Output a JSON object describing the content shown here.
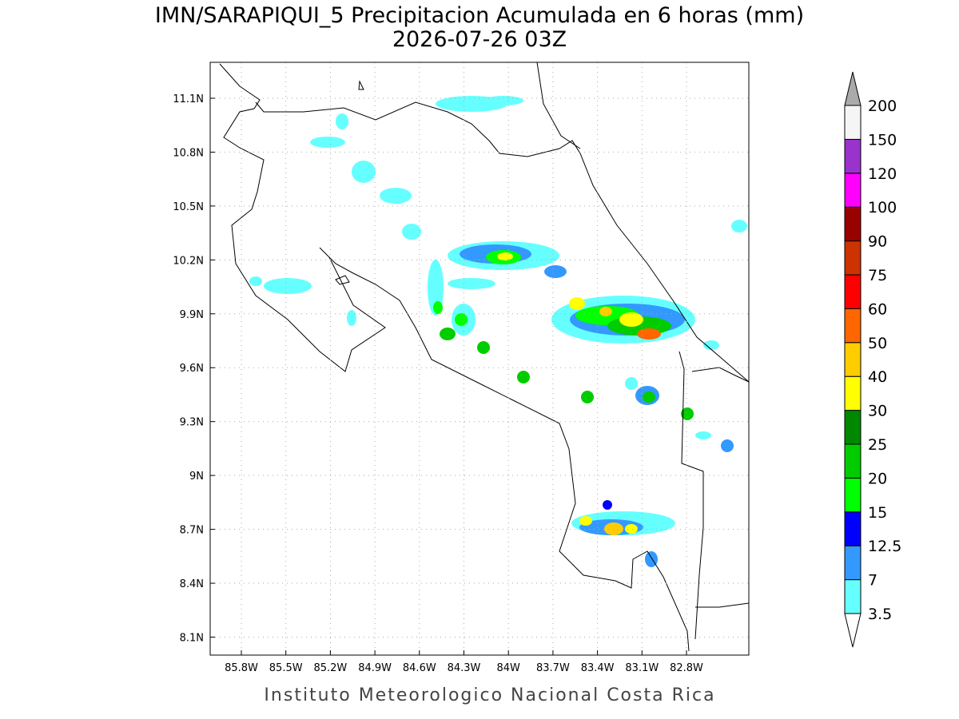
{
  "title": "IMN/SARAPIQUI_5 Precipitacion Acumulada en 6 horas (mm)",
  "subtitle": "2026-07-26 03Z",
  "map": {
    "lonlim": [
      -86.01,
      -82.38
    ],
    "latlim": [
      8.0,
      11.3
    ],
    "lon_ticks": [
      {
        "value": -85.8,
        "label": "85.8W"
      },
      {
        "value": -85.5,
        "label": "85.5W"
      },
      {
        "value": -85.2,
        "label": "85.2W"
      },
      {
        "value": -84.9,
        "label": "84.9W"
      },
      {
        "value": -84.6,
        "label": "84.6W"
      },
      {
        "value": -84.3,
        "label": "84.3W"
      },
      {
        "value": -84.0,
        "label": "84W"
      },
      {
        "value": -83.7,
        "label": "83.7W"
      },
      {
        "value": -83.4,
        "label": "83.4W"
      },
      {
        "value": -83.1,
        "label": "83.1W"
      },
      {
        "value": -82.8,
        "label": "82.8W"
      }
    ],
    "lat_ticks": [
      {
        "value": 11.1,
        "label": "11.1N"
      },
      {
        "value": 10.8,
        "label": "10.8N"
      },
      {
        "value": 10.5,
        "label": "10.5N"
      },
      {
        "value": 10.2,
        "label": "10.2N"
      },
      {
        "value": 9.9,
        "label": "9.9N"
      },
      {
        "value": 9.6,
        "label": "9.6N"
      },
      {
        "value": 9.3,
        "label": "9.3N"
      },
      {
        "value": 9.0,
        "label": "9N"
      },
      {
        "value": 8.7,
        "label": "8.7N"
      },
      {
        "value": 8.4,
        "label": "8.4N"
      },
      {
        "value": 8.1,
        "label": "8.1N"
      }
    ],
    "grid": true
  },
  "colorbar": {
    "levels": [
      3.5,
      7,
      12.5,
      15,
      20,
      25,
      30,
      40,
      50,
      60,
      75,
      90,
      100,
      120,
      150,
      200
    ],
    "colors": [
      "#66ffff",
      "#3399ff",
      "#0000ff",
      "#00ff00",
      "#00cc00",
      "#008800",
      "#ffff00",
      "#ffcc00",
      "#ff6600",
      "#ff0000",
      "#cc3300",
      "#990000",
      "#ff00ff",
      "#9933cc",
      "#f5f5f5"
    ],
    "under_color": "#ffffff",
    "over_color": "#aaaaaa"
  },
  "footer": "Instituto Meteorologico Nacional Costa Rica"
}
